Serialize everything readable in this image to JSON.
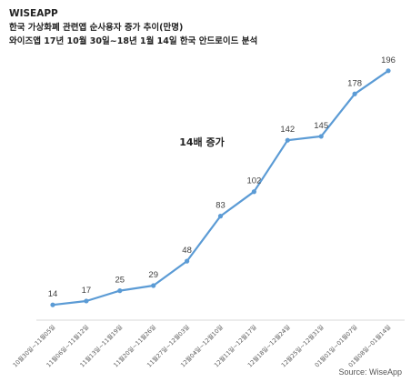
{
  "header": {
    "brand": "WISEAPP",
    "title_line1": "한국 가상화폐 관련앱 순사용자 증가 추이(만명)",
    "title_line2": "와이즈앱 17년 10월 30일~18년 1월 14일 한국 안드로이드 분석"
  },
  "source": "Source: WiseApp",
  "chart_data": {
    "type": "line",
    "title": "한국 가상화폐 관련앱 순사용자 증가 추이(만명)",
    "xlabel": "",
    "ylabel": "",
    "categories": [
      "10월30일~11월05일",
      "11월06일~11월12일",
      "11월13일~11월19일",
      "11월20일~11월26일",
      "11월27일~12월03일",
      "12월04일~12월10일",
      "12월11일~12월17일",
      "12월18일~12월24일",
      "12월25일~12월31일",
      "01월01일~01월07일",
      "01월08일~01월14일"
    ],
    "values": [
      14,
      17,
      25,
      29,
      48,
      83,
      102,
      142,
      145,
      178,
      196
    ],
    "ylim": [
      0,
      210
    ],
    "grid": false,
    "annotation": "14배 증가",
    "color": "#5b9bd5"
  }
}
